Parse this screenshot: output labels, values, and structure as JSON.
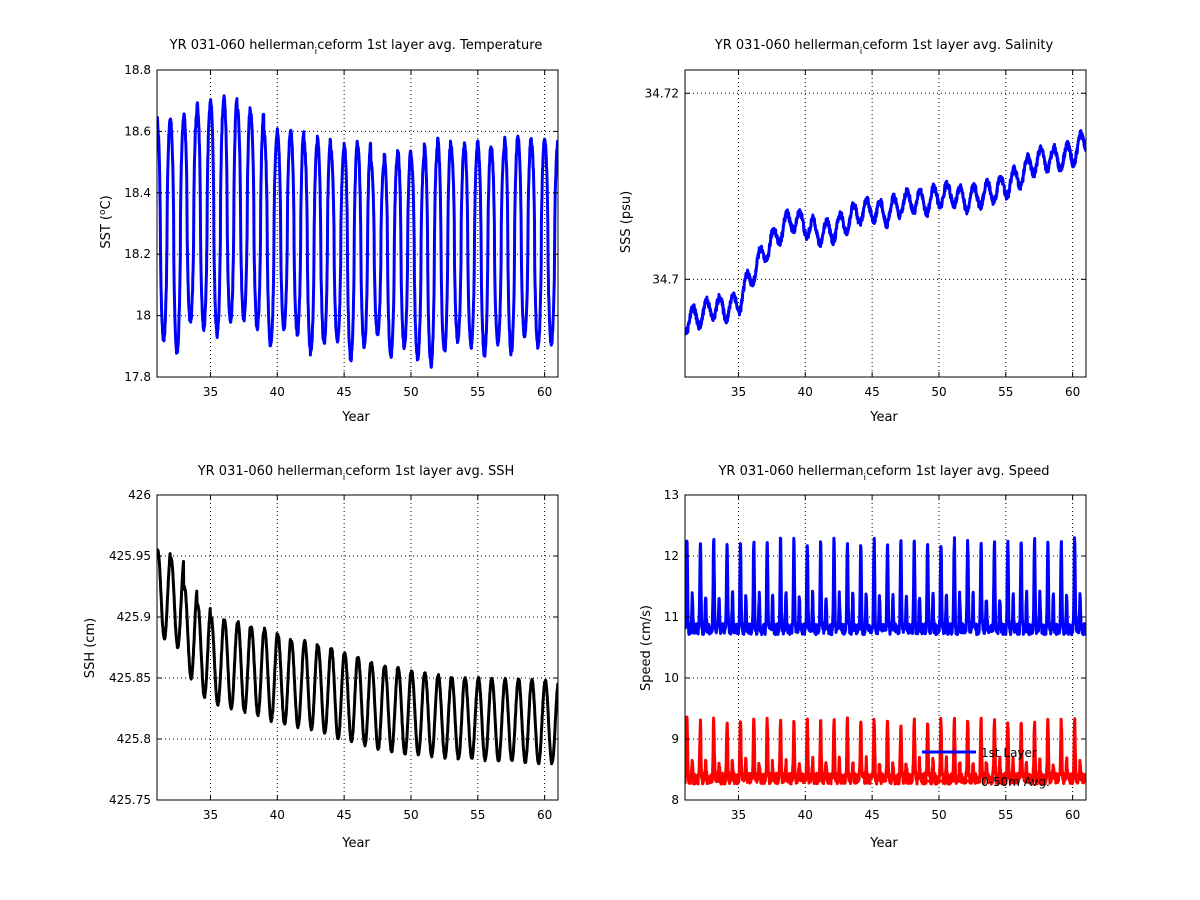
{
  "figure": {
    "background": "#ffffff"
  },
  "panels": [
    {
      "id": "temperature",
      "chart_data": {
        "type": "line",
        "title_main": "YR 031-060 hellerman",
        "title_sub": "i",
        "title_rest": "ceform 1st layer avg. Temperature",
        "xlabel": "Year",
        "ylabel_main": "SST (",
        "ylabel_sup": "o",
        "ylabel_rest": "C)",
        "xlim": [
          31,
          61
        ],
        "ylim": [
          17.8,
          18.8
        ],
        "xticks": [
          35,
          40,
          45,
          50,
          55,
          60
        ],
        "yticks": [
          17.8,
          18,
          18.2,
          18.4,
          18.6,
          18.8
        ],
        "ytick_labels": [
          "17.8",
          "18",
          "18.2",
          "18.4",
          "18.6",
          "18.8"
        ],
        "grid": true,
        "series": [
          {
            "color": "#0000ff",
            "annual_peak": [
              18.64,
              18.64,
              18.66,
              18.69,
              18.7,
              18.71,
              18.68,
              18.66,
              18.6,
              18.6,
              18.6,
              18.56,
              18.58,
              18.54,
              18.56,
              18.56,
              18.5,
              18.52,
              18.54,
              18.52,
              18.55,
              18.57,
              18.55,
              18.56,
              18.56,
              18.55,
              18.58,
              18.58,
              18.57,
              18.57
            ],
            "annual_trough": [
              17.92,
              17.88,
              17.98,
              17.96,
              17.94,
              17.98,
              17.99,
              17.96,
              17.9,
              17.96,
              17.94,
              17.88,
              17.91,
              17.92,
              17.86,
              17.9,
              17.94,
              17.87,
              17.9,
              17.86,
              17.84,
              17.88,
              17.92,
              17.9,
              17.87,
              17.91,
              17.88,
              17.93,
              17.9,
              17.91
            ]
          }
        ]
      }
    },
    {
      "id": "salinity",
      "chart_data": {
        "type": "line",
        "title_main": "YR 031-060 hellerman",
        "title_sub": "i",
        "title_rest": "ceform 1st layer avg. Salinity",
        "xlabel": "Year",
        "ylabel_main": "SSS (psu)",
        "xlim": [
          31,
          61
        ],
        "ylim": [
          34.6895,
          34.7225
        ],
        "xticks": [
          35,
          40,
          45,
          50,
          55,
          60
        ],
        "yticks": [
          34.7,
          34.72
        ],
        "ytick_labels": [
          "34.7",
          "34.72"
        ],
        "grid": true,
        "series": [
          {
            "color": "#0000ff",
            "x": [
              31,
              32,
              33,
              34,
              35,
              36,
              37,
              38,
              39,
              40,
              41,
              42,
              43,
              44,
              45,
              46,
              47,
              48,
              49,
              50,
              51,
              52,
              53,
              54,
              55,
              56,
              57,
              58,
              59,
              60,
              61
            ],
            "mean": [
              34.6955,
              34.696,
              34.697,
              34.6968,
              34.6975,
              34.7005,
              34.703,
              34.705,
              34.7065,
              34.7058,
              34.705,
              34.7052,
              34.7062,
              34.7072,
              34.7075,
              34.707,
              34.708,
              34.7085,
              34.7082,
              34.709,
              34.7092,
              34.7085,
              34.709,
              34.7095,
              34.71,
              34.711,
              34.7125,
              34.713,
              34.713,
              34.7135,
              34.715
            ],
            "seasonal_amplitude": 0.0012,
            "noise": 0.0004
          }
        ]
      }
    },
    {
      "id": "ssh",
      "chart_data": {
        "type": "line",
        "title_main": "YR 031-060 hellerman",
        "title_sub": "i",
        "title_rest": "ceform 1st layer avg. SSH",
        "xlabel": "Year",
        "ylabel_main": "SSH (cm)",
        "xlim": [
          31,
          61
        ],
        "ylim": [
          425.75,
          426.0
        ],
        "xticks": [
          35,
          40,
          45,
          50,
          55,
          60
        ],
        "yticks": [
          425.75,
          425.8,
          425.85,
          425.9,
          425.95,
          426
        ],
        "ytick_labels": [
          "425.75",
          "425.8",
          "425.85",
          "425.9",
          "425.95",
          "426"
        ],
        "grid": true,
        "series": [
          {
            "color": "#000000",
            "annual_peak": [
              425.955,
              425.948,
              425.925,
              425.91,
              425.9,
              425.897,
              425.896,
              425.892,
              425.89,
              425.885,
              425.88,
              425.88,
              425.876,
              425.874,
              425.87,
              425.866,
              425.862,
              425.86,
              425.858,
              425.856,
              425.854,
              425.852,
              425.851,
              425.85,
              425.85,
              425.849,
              425.849,
              425.849,
              425.848,
              425.848
            ],
            "annual_trough": [
              425.882,
              425.875,
              425.85,
              425.835,
              425.828,
              425.825,
              425.822,
              425.82,
              425.815,
              425.812,
              425.81,
              425.808,
              425.805,
              425.8,
              425.798,
              425.795,
              425.792,
              425.79,
              425.788,
              425.787,
              425.786,
              425.785,
              425.784,
              425.784,
              425.783,
              425.782,
              425.782,
              425.781,
              425.78,
              425.78
            ]
          }
        ]
      }
    },
    {
      "id": "speed",
      "chart_data": {
        "type": "line",
        "title_main": "YR 031-060 hellerman",
        "title_sub": "i",
        "title_rest": "ceform 1st layer avg. Speed",
        "xlabel": "Year",
        "ylabel_main": "Speed (cm/s)",
        "xlim": [
          31,
          61
        ],
        "ylim": [
          8,
          13
        ],
        "xticks": [
          35,
          40,
          45,
          50,
          55,
          60
        ],
        "yticks": [
          8,
          9,
          10,
          11,
          12,
          13
        ],
        "ytick_labels": [
          "8",
          "9",
          "10",
          "11",
          "12",
          "13"
        ],
        "grid": true,
        "legend": {
          "placement": "bottom-right"
        },
        "series": [
          {
            "name": "1st Layer",
            "color": "#0000ff",
            "base": 10.8,
            "peak": 12.25,
            "secondary": 11.5
          },
          {
            "name": "0-50m Avg.",
            "color": "#ff0000",
            "base": 8.35,
            "peak": 9.3,
            "secondary": 8.7
          }
        ]
      }
    }
  ]
}
